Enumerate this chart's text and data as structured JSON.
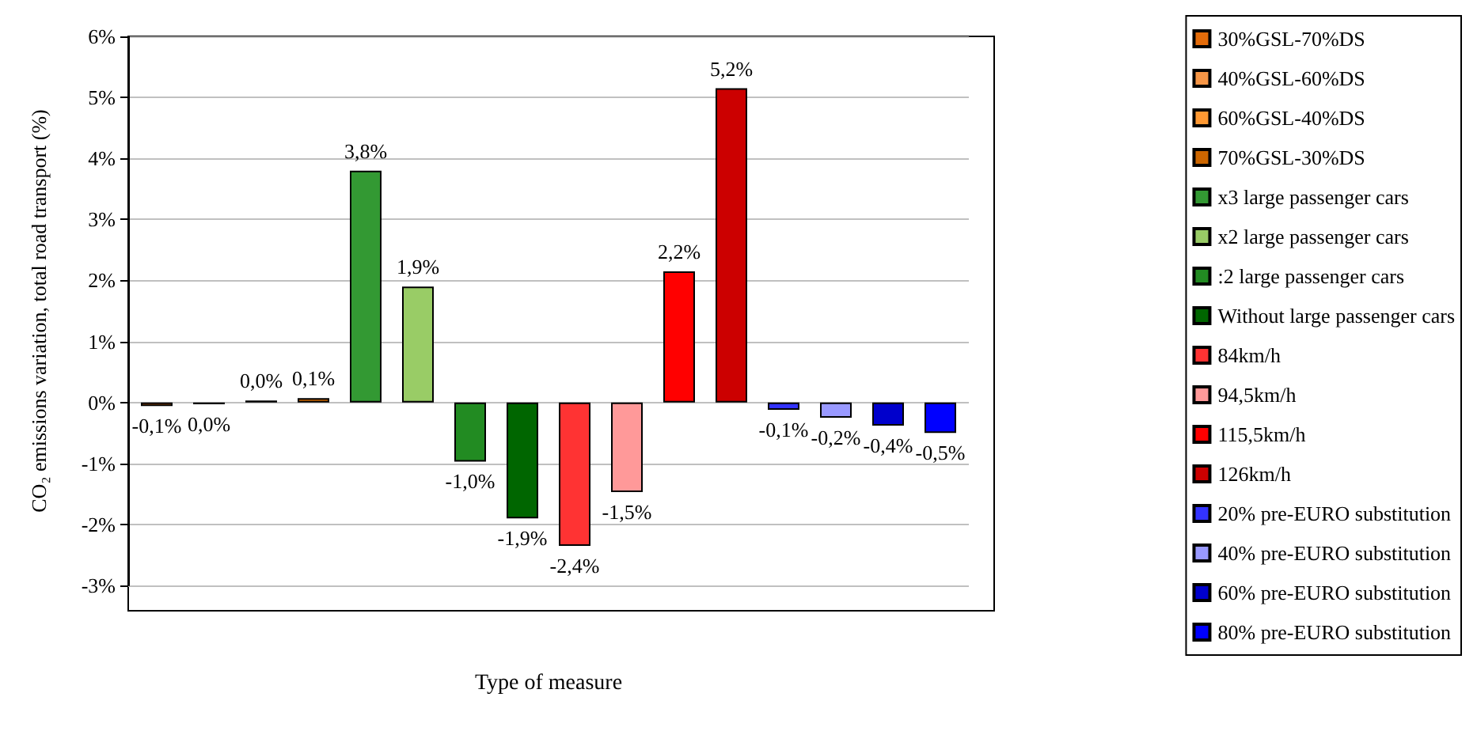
{
  "chart_data": {
    "type": "bar",
    "xlabel": "Type of measure",
    "ylabel": "CO₂ emissions variation, total road transport (%)",
    "categories": [
      null
    ],
    "ylim": [
      -3,
      6
    ],
    "yticks": [
      {
        "value": -3,
        "label": "-3%"
      },
      {
        "value": -2,
        "label": "-2%"
      },
      {
        "value": -1,
        "label": "-1%"
      },
      {
        "value": 0,
        "label": "0%"
      },
      {
        "value": 1,
        "label": "1%"
      },
      {
        "value": 2,
        "label": "2%"
      },
      {
        "value": 3,
        "label": "3%"
      },
      {
        "value": 4,
        "label": "4%"
      },
      {
        "value": 5,
        "label": "5%"
      },
      {
        "value": 6,
        "label": "6%"
      }
    ],
    "grid": "y",
    "legend": "right",
    "series": [
      {
        "name": "30%GSL-70%DS",
        "color": "#e46c0a",
        "values": [
          -0.06
        ],
        "value_labels": [
          "-0,1%"
        ]
      },
      {
        "name": "40%GSL-60%DS",
        "color": "#f79646",
        "values": [
          -0.03
        ],
        "value_labels": [
          "0,0%"
        ]
      },
      {
        "name": "60%GSL-40%DS",
        "color": "#ff9933",
        "values": [
          0.03
        ],
        "value_labels": [
          "0,0%"
        ]
      },
      {
        "name": "70%GSL-30%DS",
        "color": "#cc6600",
        "values": [
          0.07
        ],
        "value_labels": [
          "0,1%"
        ]
      },
      {
        "name": "x3 large passenger cars",
        "color": "#339933",
        "values": [
          3.8
        ],
        "value_labels": [
          "3,8%"
        ]
      },
      {
        "name": "x2 large passenger cars",
        "color": "#99cc66",
        "values": [
          1.9
        ],
        "value_labels": [
          "1,9%"
        ]
      },
      {
        "name": ":2 large passenger cars",
        "color": "#228b22",
        "values": [
          -0.97
        ],
        "value_labels": [
          "-1,0%"
        ]
      },
      {
        "name": "Without large passenger cars",
        "color": "#006600",
        "values": [
          -1.9
        ],
        "value_labels": [
          "-1,9%"
        ]
      },
      {
        "name": "84km/h",
        "color": "#ff3333",
        "values": [
          -2.35
        ],
        "value_labels": [
          "-2,4%"
        ]
      },
      {
        "name": "94,5km/h",
        "color": "#ff9999",
        "values": [
          -1.47
        ],
        "value_labels": [
          "-1,5%"
        ]
      },
      {
        "name": "115,5km/h",
        "color": "#ff0000",
        "values": [
          2.15
        ],
        "value_labels": [
          "2,2%"
        ]
      },
      {
        "name": "126km/h",
        "color": "#cc0000",
        "values": [
          5.15
        ],
        "value_labels": [
          "5,2%"
        ]
      },
      {
        "name": "20% pre-EURO substitution",
        "color": "#3333ff",
        "values": [
          -0.12
        ],
        "value_labels": [
          "-0,1%"
        ]
      },
      {
        "name": "40% pre-EURO substitution",
        "color": "#9999ff",
        "values": [
          -0.25
        ],
        "value_labels": [
          "-0,2%"
        ]
      },
      {
        "name": "60% pre-EURO substitution",
        "color": "#0000cc",
        "values": [
          -0.38
        ],
        "value_labels": [
          "-0,4%"
        ]
      },
      {
        "name": "80% pre-EURO substitution",
        "color": "#0000ff",
        "values": [
          -0.5
        ],
        "value_labels": [
          "-0,5%"
        ]
      }
    ]
  }
}
